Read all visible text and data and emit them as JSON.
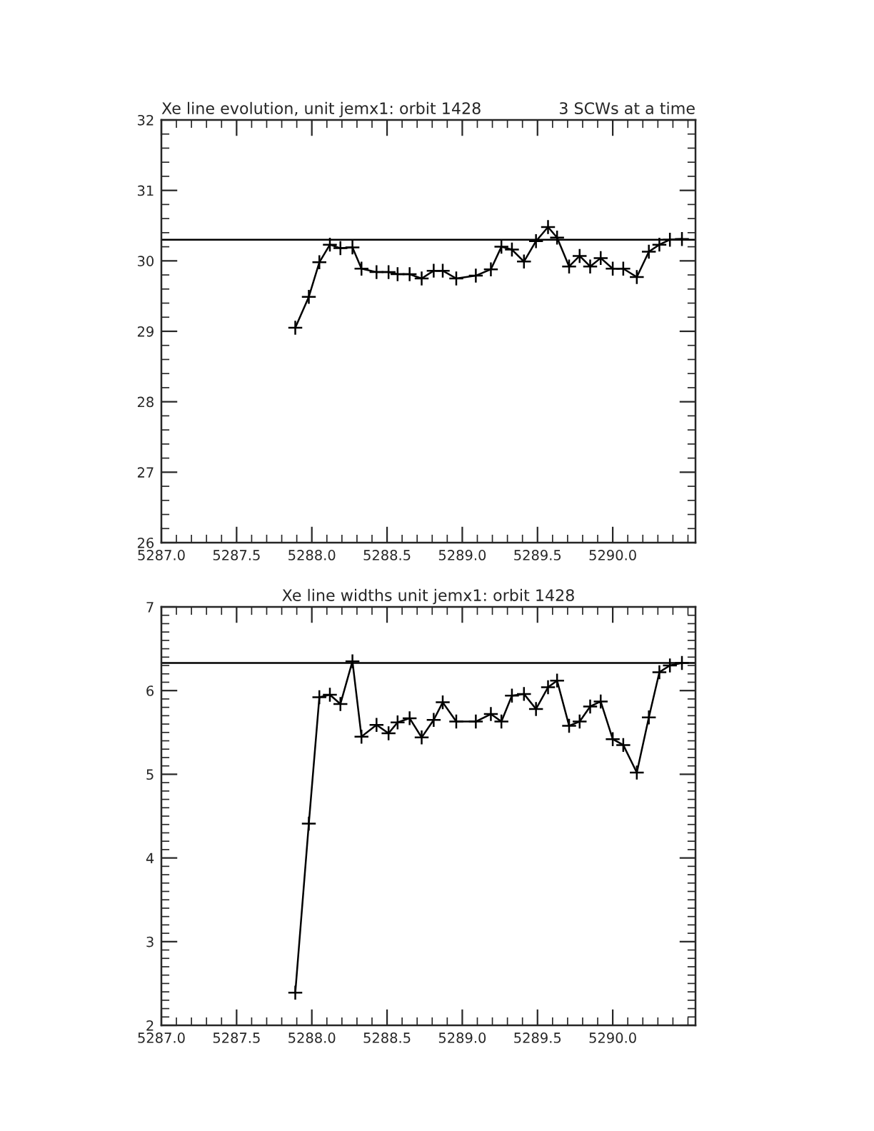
{
  "chart_data": [
    {
      "type": "line",
      "title": "Xe line evolution, unit jemx1: orbit 1428",
      "subtitle": "3 SCWs at a time",
      "x": [
        5287.89,
        5287.98,
        5288.05,
        5288.12,
        5288.19,
        5288.27,
        5288.33,
        5288.43,
        5288.51,
        5288.57,
        5288.65,
        5288.73,
        5288.81,
        5288.87,
        5288.96,
        5289.09,
        5289.19,
        5289.26,
        5289.33,
        5289.41,
        5289.49,
        5289.57,
        5289.63,
        5289.71,
        5289.78,
        5289.85,
        5289.92,
        5290.0,
        5290.07,
        5290.16,
        5290.24,
        5290.31,
        5290.38,
        5290.46
      ],
      "series": [
        {
          "color": "#000000",
          "values": [
            29.05,
            29.49,
            29.98,
            30.23,
            30.18,
            30.19,
            29.89,
            29.84,
            29.84,
            29.81,
            29.81,
            29.75,
            29.86,
            29.86,
            29.75,
            29.79,
            29.88,
            30.2,
            30.16,
            29.99,
            30.28,
            30.48,
            30.33,
            29.92,
            30.07,
            29.92,
            30.04,
            29.89,
            29.89,
            29.77,
            30.13,
            30.23,
            30.3,
            30.31
          ]
        }
      ],
      "marker": "cross",
      "line_style": "solid",
      "grid": false,
      "legend": false,
      "ref_lines": [
        {
          "axis": "y",
          "value": 30.3,
          "color": "#000000"
        }
      ],
      "xlim": [
        5287.0,
        5290.55
      ],
      "xticks": [
        {
          "value": 5287.0,
          "label": "5287.0"
        },
        {
          "value": 5287.5,
          "label": "5287.5"
        },
        {
          "value": 5288.0,
          "label": "5288.0"
        },
        {
          "value": 5288.5,
          "label": "5288.5"
        },
        {
          "value": 5289.0,
          "label": "5289.0"
        },
        {
          "value": 5289.5,
          "label": "5289.5"
        },
        {
          "value": 5290.0,
          "label": "5290.0"
        }
      ],
      "ylim": [
        26,
        32
      ],
      "yticks": [
        26,
        27,
        28,
        29,
        30,
        31,
        32
      ]
    },
    {
      "type": "line",
      "title": "Xe line widths unit jemx1: orbit 1428",
      "x": [
        5287.89,
        5287.98,
        5288.05,
        5288.12,
        5288.19,
        5288.27,
        5288.33,
        5288.43,
        5288.51,
        5288.57,
        5288.65,
        5288.73,
        5288.81,
        5288.87,
        5288.96,
        5289.09,
        5289.19,
        5289.26,
        5289.33,
        5289.41,
        5289.49,
        5289.57,
        5289.63,
        5289.71,
        5289.78,
        5289.85,
        5289.92,
        5290.0,
        5290.07,
        5290.16,
        5290.24,
        5290.31,
        5290.38,
        5290.46
      ],
      "series": [
        {
          "color": "#000000",
          "values": [
            2.39,
            4.41,
            5.92,
            5.95,
            5.84,
            6.35,
            5.45,
            5.59,
            5.49,
            5.62,
            5.67,
            5.44,
            5.65,
            5.86,
            5.63,
            5.63,
            5.72,
            5.63,
            5.94,
            5.96,
            5.78,
            6.04,
            6.12,
            5.58,
            5.63,
            5.81,
            5.87,
            5.42,
            5.35,
            5.02,
            5.68,
            6.22,
            6.3,
            6.33
          ]
        }
      ],
      "marker": "cross",
      "line_style": "solid",
      "grid": false,
      "legend": false,
      "ref_lines": [
        {
          "axis": "y",
          "value": 6.33,
          "color": "#000000"
        }
      ],
      "xlim": [
        5287.0,
        5290.55
      ],
      "xticks": [
        {
          "value": 5287.0,
          "label": "5287.0"
        },
        {
          "value": 5287.5,
          "label": "5287.5"
        },
        {
          "value": 5288.0,
          "label": "5288.0"
        },
        {
          "value": 5288.5,
          "label": "5288.5"
        },
        {
          "value": 5289.0,
          "label": "5289.0"
        },
        {
          "value": 5289.5,
          "label": "5289.5"
        },
        {
          "value": 5290.0,
          "label": "5290.0"
        }
      ],
      "ylim": [
        2,
        7
      ],
      "yticks": [
        2,
        3,
        4,
        5,
        6,
        7
      ]
    }
  ]
}
